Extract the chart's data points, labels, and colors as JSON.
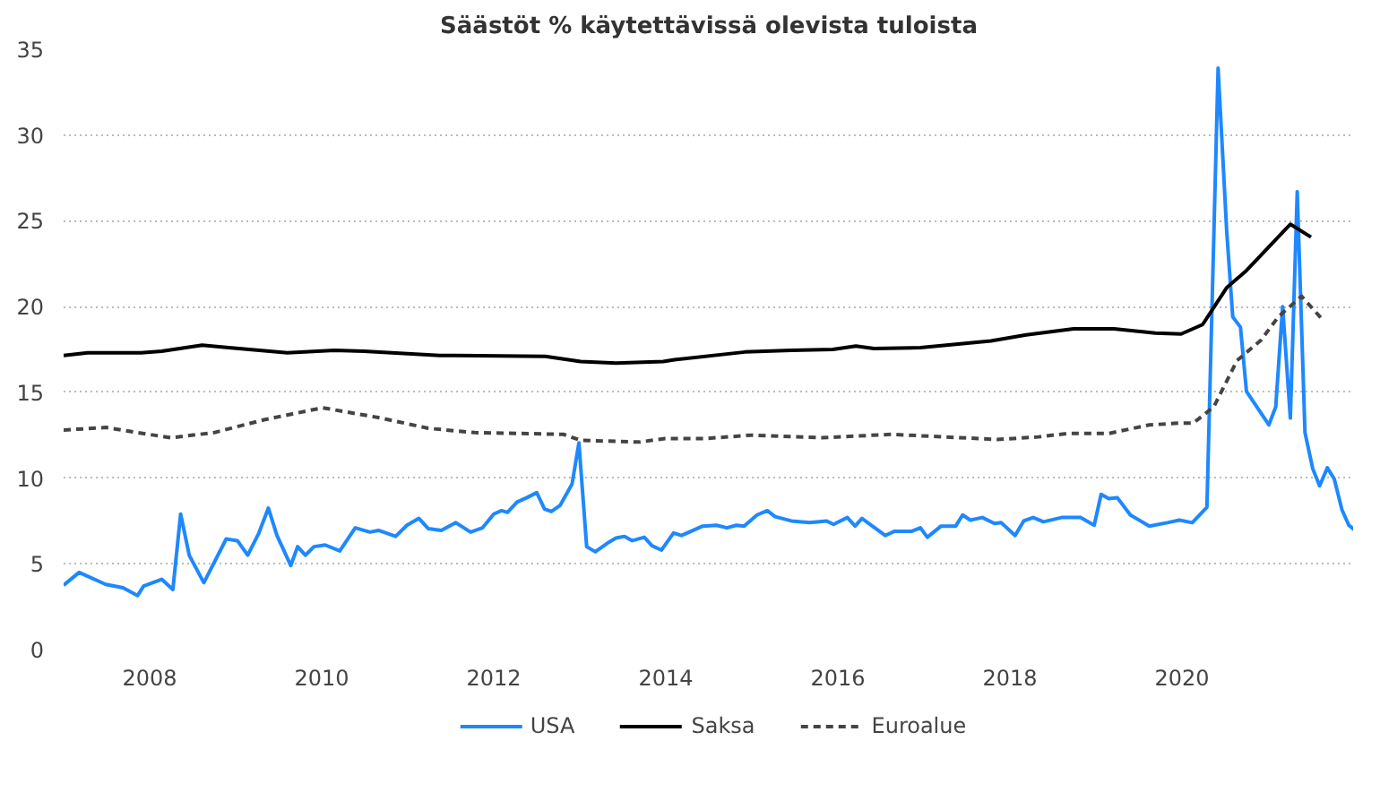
{
  "chart_data": {
    "type": "line",
    "title": "Säästöt % käytettävissä olevista tuloista",
    "xlim": [
      2007,
      2022
    ],
    "xticks": [
      2008,
      2010,
      2012,
      2014,
      2016,
      2018,
      2020
    ],
    "ylim": [
      0,
      35
    ],
    "yticks": [
      0,
      5,
      10,
      15,
      20,
      25,
      30,
      35
    ],
    "grid": "y",
    "legend": "bottom",
    "line_style": "solid",
    "series": [
      {
        "name": "USA",
        "color": "#1e88ff",
        "x": [
          2007.0,
          2007.18,
          2007.49,
          2007.69,
          2007.86,
          2007.93,
          2008.14,
          2008.27,
          2008.36,
          2008.46,
          2008.63,
          2008.89,
          2009.02,
          2009.14,
          2009.27,
          2009.38,
          2009.48,
          2009.64,
          2009.72,
          2009.81,
          2009.91,
          2010.04,
          2010.21,
          2010.39,
          2010.56,
          2010.66,
          2010.86,
          2010.99,
          2011.13,
          2011.24,
          2011.39,
          2011.56,
          2011.73,
          2011.87,
          2012.0,
          2012.09,
          2012.16,
          2012.27,
          2012.38,
          2012.5,
          2012.59,
          2012.67,
          2012.77,
          2012.91,
          2012.99,
          2013.08,
          2013.18,
          2013.32,
          2013.42,
          2013.52,
          2013.61,
          2013.75,
          2013.84,
          2013.95,
          2014.09,
          2014.18,
          2014.43,
          2014.59,
          2014.71,
          2014.82,
          2014.91,
          2015.06,
          2015.18,
          2015.27,
          2015.46,
          2015.67,
          2015.87,
          2015.95,
          2016.11,
          2016.2,
          2016.28,
          2016.55,
          2016.66,
          2016.86,
          2016.96,
          2017.04,
          2017.2,
          2017.37,
          2017.45,
          2017.54,
          2017.68,
          2017.82,
          2017.9,
          2018.06,
          2018.16,
          2018.27,
          2018.39,
          2018.6,
          2018.82,
          2018.98,
          2019.06,
          2019.15,
          2019.25,
          2019.4,
          2019.62,
          2019.83,
          2019.97,
          2020.12,
          2020.29,
          2020.42,
          2020.52,
          2020.59,
          2020.68,
          2020.75,
          2021.01,
          2021.09,
          2021.17,
          2021.26,
          2021.34,
          2021.43,
          2021.52,
          2021.6,
          2021.69,
          2021.77,
          2021.86,
          2021.94,
          2022.0
        ],
        "values": [
          3.75,
          4.5,
          3.8,
          3.6,
          3.15,
          3.7,
          4.1,
          3.5,
          7.9,
          5.5,
          3.9,
          6.45,
          6.35,
          5.5,
          6.8,
          8.25,
          6.65,
          4.9,
          6.0,
          5.5,
          6.0,
          6.1,
          5.75,
          7.1,
          6.85,
          6.95,
          6.6,
          7.25,
          7.65,
          7.05,
          6.95,
          7.4,
          6.85,
          7.1,
          7.9,
          8.1,
          8.0,
          8.6,
          8.85,
          9.15,
          8.2,
          8.05,
          8.4,
          9.65,
          12.05,
          6.0,
          5.7,
          6.2,
          6.5,
          6.6,
          6.35,
          6.55,
          6.05,
          5.8,
          6.8,
          6.65,
          7.2,
          7.25,
          7.1,
          7.25,
          7.2,
          7.85,
          8.1,
          7.75,
          7.5,
          7.4,
          7.5,
          7.3,
          7.7,
          7.2,
          7.65,
          6.65,
          6.9,
          6.9,
          7.1,
          6.55,
          7.2,
          7.2,
          7.85,
          7.55,
          7.7,
          7.35,
          7.4,
          6.65,
          7.5,
          7.7,
          7.45,
          7.7,
          7.7,
          7.25,
          9.05,
          8.8,
          8.85,
          7.85,
          7.2,
          7.4,
          7.55,
          7.4,
          8.3,
          33.9,
          24.4,
          19.4,
          18.8,
          15.05,
          13.1,
          14.15,
          20.0,
          13.5,
          26.7,
          12.65,
          10.55,
          9.55,
          10.6,
          9.95,
          8.15,
          7.25,
          7.0
        ]
      },
      {
        "name": "Saksa",
        "color": "#000000",
        "x": [
          2007.0,
          2007.28,
          2007.9,
          2008.14,
          2008.61,
          2008.92,
          2009.6,
          2010.15,
          2010.49,
          2011.37,
          2012.6,
          2013.01,
          2013.42,
          2013.97,
          2014.1,
          2014.92,
          2015.46,
          2015.94,
          2016.21,
          2016.42,
          2016.96,
          2017.78,
          2018.19,
          2018.74,
          2019.21,
          2019.69,
          2019.99,
          2020.24,
          2020.52,
          2020.75,
          2021.26,
          2021.5
        ],
        "values": [
          17.15,
          17.3,
          17.3,
          17.4,
          17.75,
          17.6,
          17.3,
          17.45,
          17.4,
          17.15,
          17.1,
          16.8,
          16.7,
          16.8,
          16.9,
          17.35,
          17.45,
          17.5,
          17.7,
          17.55,
          17.6,
          18.0,
          18.35,
          18.7,
          18.7,
          18.45,
          18.4,
          18.95,
          21.1,
          22.1,
          24.8,
          24.05
        ]
      },
      {
        "name": "Euroalue",
        "color": "#444444",
        "line_style": "dashed",
        "x": [
          2007.0,
          2007.49,
          2008.24,
          2008.75,
          2009.33,
          2010.01,
          2010.69,
          2011.24,
          2011.78,
          2012.81,
          2013.01,
          2013.69,
          2013.99,
          2014.44,
          2014.99,
          2015.81,
          2016.62,
          2017.85,
          2018.33,
          2018.67,
          2019.15,
          2019.62,
          2019.96,
          2020.13,
          2020.37,
          2020.64,
          2020.92,
          2021.12,
          2021.39,
          2021.65
        ],
        "values": [
          12.8,
          12.95,
          12.35,
          12.65,
          13.4,
          14.1,
          13.5,
          12.9,
          12.65,
          12.55,
          12.2,
          12.1,
          12.3,
          12.3,
          12.5,
          12.35,
          12.55,
          12.25,
          12.4,
          12.6,
          12.6,
          13.1,
          13.2,
          13.2,
          14.15,
          16.85,
          18.05,
          19.4,
          20.6,
          19.15
        ]
      }
    ]
  }
}
